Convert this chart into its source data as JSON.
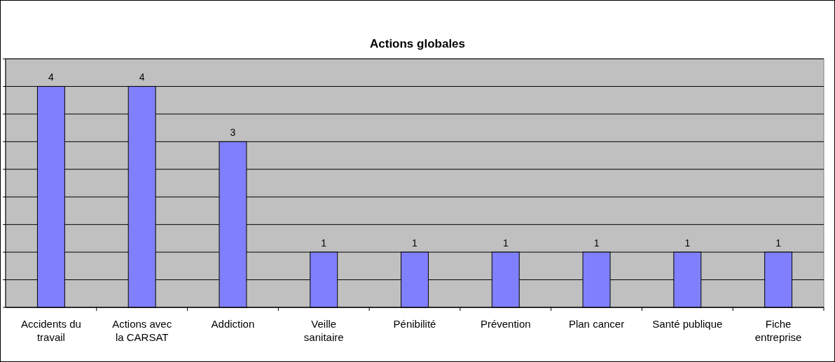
{
  "chart_data": {
    "type": "bar",
    "title": "Actions globales",
    "categories": [
      "Accidents du travail",
      "Actions avec la CARSAT",
      "Addiction",
      "Veille sanitaire",
      "Pénibilité",
      "Prévention",
      "Plan cancer",
      "Santé publique",
      "Fiche entreprise"
    ],
    "values": [
      4,
      4,
      3,
      1,
      1,
      1,
      1,
      1,
      1
    ],
    "color": "#8080ff",
    "ylim": [
      0,
      4.5
    ],
    "yticks": [
      {
        "value": 0,
        "label": null
      },
      {
        "value": 0.5,
        "label": null
      },
      {
        "value": 1,
        "label": null
      },
      {
        "value": 1.5,
        "label": null
      },
      {
        "value": 2,
        "label": null
      },
      {
        "value": 2.5,
        "label": null
      },
      {
        "value": 3,
        "label": null
      },
      {
        "value": 3.5,
        "label": null
      },
      {
        "value": 4,
        "label": null
      },
      {
        "value": 4.5,
        "label": null
      }
    ],
    "grid": "y",
    "data_labels": true,
    "tick_labels": "x"
  }
}
